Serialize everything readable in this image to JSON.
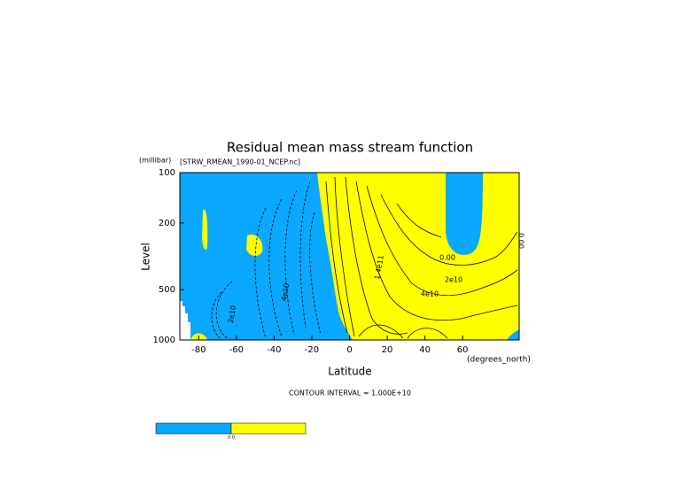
{
  "chart_data": {
    "type": "contour",
    "title": "Residual mean mass stream function",
    "subtitle": "[STRW_RMEAN_1990-01_NCEP.nc]",
    "x_label": "Latitude",
    "x_unit": "(degrees_north)",
    "y_label": "Level",
    "y_unit": "(millibar)",
    "xlim": [
      -90,
      90
    ],
    "xticks": [
      -80,
      -60,
      -40,
      -20,
      0,
      20,
      40,
      60
    ],
    "ylim": [
      1000,
      100
    ],
    "y_log": true,
    "yticks": [
      100,
      200,
      500,
      1000
    ],
    "footnote": "CONTOUR INTERVAL = 1.000E+10",
    "contour_labels": [
      "0.00",
      "2e10",
      "4e10",
      "1.4e11",
      "4e10",
      "2e10",
      "0.00"
    ],
    "colors": {
      "negative": "#0aa8ff",
      "positive": "#ffff00"
    },
    "colorbar_ticks": [
      {
        "value": 0,
        "label": "0.0"
      }
    ]
  }
}
